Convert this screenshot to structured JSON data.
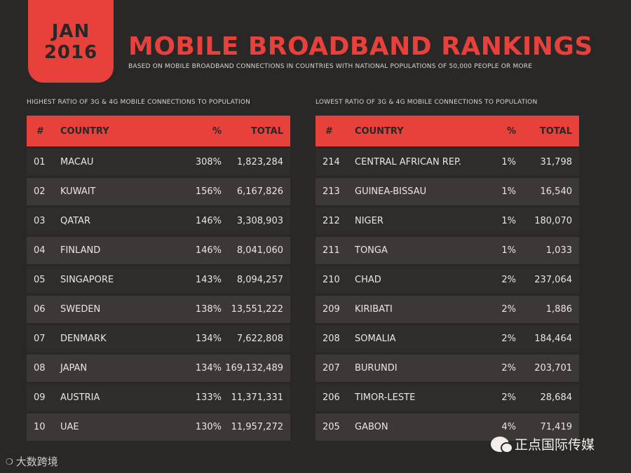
{
  "badge": {
    "month": "JAN",
    "year": "2016"
  },
  "header": {
    "title": "MOBILE BROADBAND RANKINGS",
    "subtitle": "BASED ON MOBILE BROADBAND CONNECTIONS IN COUNTRIES WITH NATIONAL POPULATIONS OF 50,000 PEOPLE OR MORE"
  },
  "highest": {
    "caption": "HIGHEST RATIO OF 3G & 4G MOBILE CONNECTIONS TO POPULATION",
    "columns": [
      "#",
      "COUNTRY",
      "%",
      "TOTAL"
    ],
    "rows": [
      {
        "rank": "01",
        "country": "MACAU",
        "pct": "308%",
        "total": "1,823,284"
      },
      {
        "rank": "02",
        "country": "KUWAIT",
        "pct": "156%",
        "total": "6,167,826"
      },
      {
        "rank": "03",
        "country": "QATAR",
        "pct": "146%",
        "total": "3,308,903"
      },
      {
        "rank": "04",
        "country": "FINLAND",
        "pct": "146%",
        "total": "8,041,060"
      },
      {
        "rank": "05",
        "country": "SINGAPORE",
        "pct": "143%",
        "total": "8,094,257"
      },
      {
        "rank": "06",
        "country": "SWEDEN",
        "pct": "138%",
        "total": "13,551,222"
      },
      {
        "rank": "07",
        "country": "DENMARK",
        "pct": "134%",
        "total": "7,622,808"
      },
      {
        "rank": "08",
        "country": "JAPAN",
        "pct": "134%",
        "total": "169,132,489"
      },
      {
        "rank": "09",
        "country": "AUSTRIA",
        "pct": "133%",
        "total": "11,371,331"
      },
      {
        "rank": "10",
        "country": "UAE",
        "pct": "130%",
        "total": "11,957,272"
      }
    ]
  },
  "lowest": {
    "caption": "LOWEST RATIO OF 3G & 4G MOBILE CONNECTIONS TO POPULATION",
    "columns": [
      "#",
      "COUNTRY",
      "%",
      "TOTAL"
    ],
    "rows": [
      {
        "rank": "214",
        "country": "CENTRAL AFRICAN REP.",
        "pct": "1%",
        "total": "31,798"
      },
      {
        "rank": "213",
        "country": "GUINEA-BISSAU",
        "pct": "1%",
        "total": "16,540"
      },
      {
        "rank": "212",
        "country": "NIGER",
        "pct": "1%",
        "total": "180,070"
      },
      {
        "rank": "211",
        "country": "TONGA",
        "pct": "1%",
        "total": "1,033"
      },
      {
        "rank": "210",
        "country": "CHAD",
        "pct": "2%",
        "total": "237,064"
      },
      {
        "rank": "209",
        "country": "KIRIBATI",
        "pct": "2%",
        "total": "1,886"
      },
      {
        "rank": "208",
        "country": "SOMALIA",
        "pct": "2%",
        "total": "184,464"
      },
      {
        "rank": "207",
        "country": "BURUNDI",
        "pct": "2%",
        "total": "203,701"
      },
      {
        "rank": "206",
        "country": "TIMOR-LESTE",
        "pct": "2%",
        "total": "28,684"
      },
      {
        "rank": "205",
        "country": "GABON",
        "pct": "4%",
        "total": "71,419"
      }
    ]
  },
  "watermarks": {
    "left": "大数跨境",
    "right": "正点国际传媒"
  },
  "colors": {
    "accent": "#e8413c",
    "background": "#2a2727",
    "row_light": "#3c3838",
    "row_dark": "#2f2c2c"
  }
}
